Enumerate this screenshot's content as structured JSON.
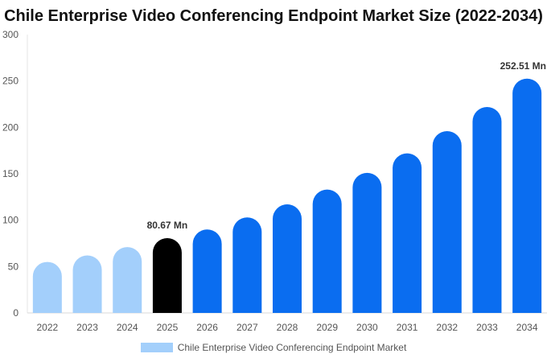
{
  "title": "Chile Enterprise Video Conferencing Endpoint Market Size (2022-2034)",
  "colors": {
    "historical": "#a3cffb",
    "base_year": "#000000",
    "forecast": "#0a6df0",
    "axis_text": "#555555"
  },
  "legend": {
    "label": "Chile Enterprise Video Conferencing Endpoint Market",
    "color": "#a3cffb",
    "position": "bottom-center"
  },
  "chart_data": {
    "type": "bar",
    "title": "Chile Enterprise Video Conferencing Endpoint Market Size (2022-2034)",
    "xlabel": "",
    "ylabel": "",
    "categories": [
      "2022",
      "2023",
      "2024",
      "2025",
      "2026",
      "2027",
      "2028",
      "2029",
      "2030",
      "2031",
      "2032",
      "2033",
      "2034"
    ],
    "series": [
      {
        "name": "Chile Enterprise Video Conferencing Endpoint Market",
        "values": [
          55,
          62,
          71,
          80.67,
          90,
          103,
          117,
          133,
          151,
          172,
          196,
          222,
          252.51
        ]
      }
    ],
    "bar_colors": [
      "historical",
      "historical",
      "historical",
      "base_year",
      "forecast",
      "forecast",
      "forecast",
      "forecast",
      "forecast",
      "forecast",
      "forecast",
      "forecast",
      "forecast"
    ],
    "data_labels": [
      {
        "category": "2025",
        "text": "80.67 Mn"
      },
      {
        "category": "2034",
        "text": "252.51 Mn"
      }
    ],
    "ylim": [
      0,
      300
    ],
    "yticks": [
      0,
      50,
      100,
      150,
      200,
      250,
      300
    ],
    "grid": false,
    "legend_position": "bottom"
  }
}
